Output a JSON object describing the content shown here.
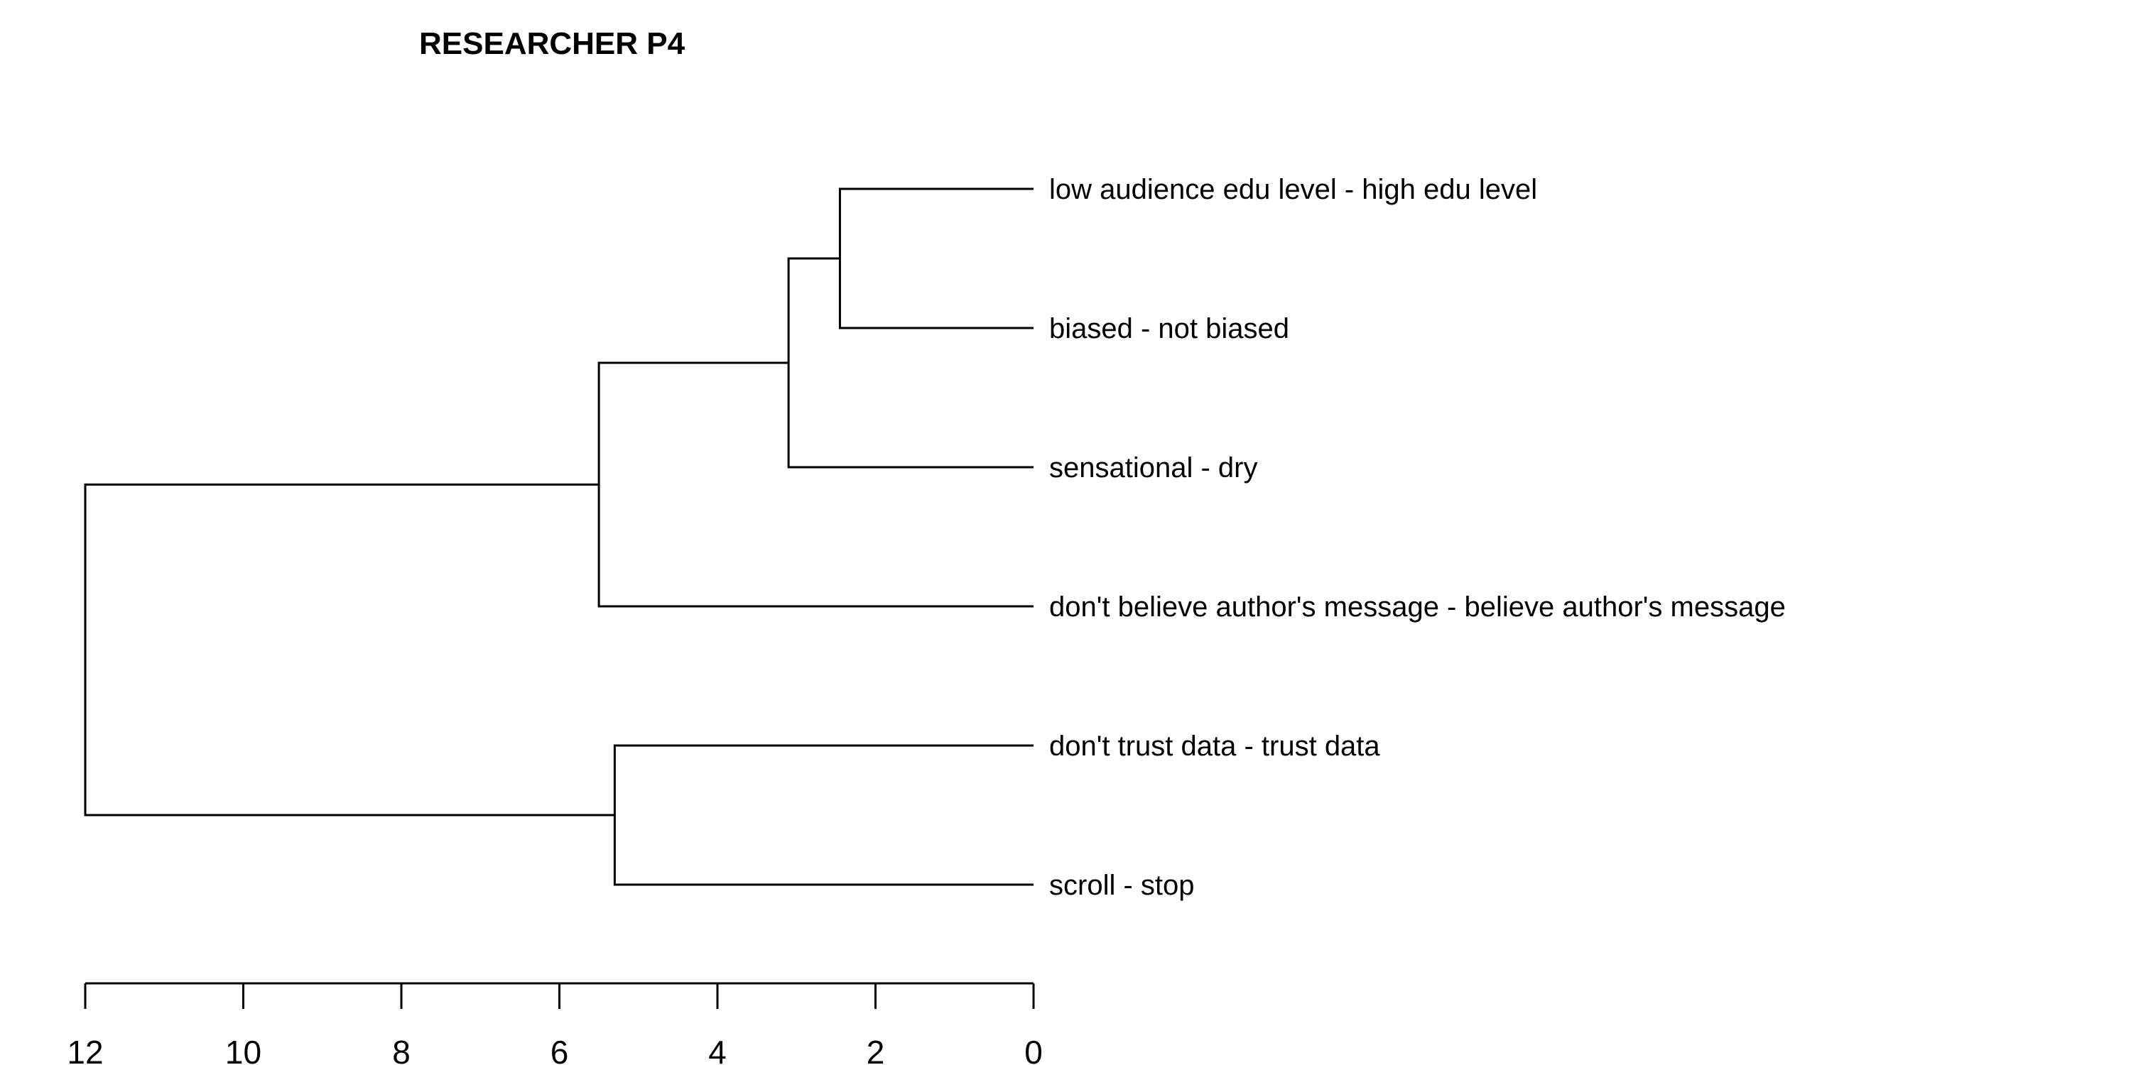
{
  "chart_data": {
    "type": "dendrogram",
    "title": "RESEARCHER P4",
    "orientation": "horizontal",
    "xlim": [
      12,
      0
    ],
    "ticks": [
      12,
      10,
      8,
      6,
      4,
      2,
      0
    ],
    "leaves": [
      "low audience edu level - high edu level",
      "biased - not biased",
      "sensational - dry",
      "don't believe author's message - believe author's message",
      "don't trust data - trust data",
      "scroll - stop"
    ],
    "merges": [
      {
        "left": "L0",
        "right": "L1",
        "height": 2.45
      },
      {
        "left": "M0",
        "right": "L2",
        "height": 3.1
      },
      {
        "left": "M1",
        "right": "L3",
        "height": 5.5
      },
      {
        "left": "L4",
        "right": "L5",
        "height": 5.3
      },
      {
        "left": "M2",
        "right": "M3",
        "height": 12.0
      }
    ]
  }
}
